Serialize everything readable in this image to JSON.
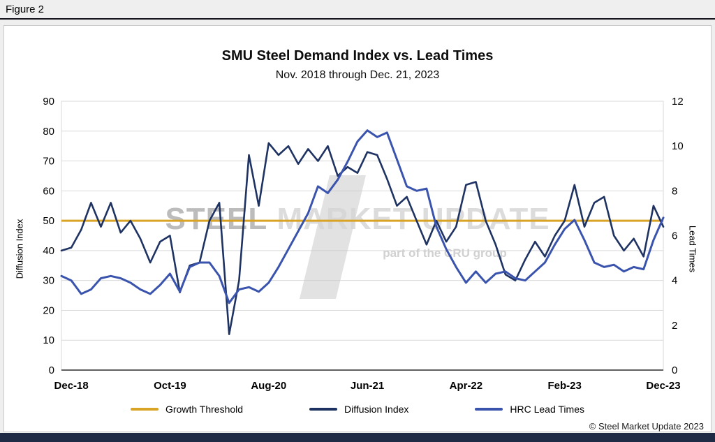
{
  "figure_label": "Figure 2",
  "title": "SMU Steel Demand Index vs. Lead Times",
  "subtitle": "Nov. 2018 through Dec. 21, 2023",
  "axes": {
    "left_title": "Diffusion Index",
    "right_title": "Lead Times"
  },
  "watermark": {
    "line1_a": "STEEL",
    "line1_b": "MARKET UPDATE",
    "line2": "part of the CRU group"
  },
  "copyright": "© Steel Market Update 2023",
  "colors": {
    "threshold": "#d9a426",
    "diffusion": "#1f3363",
    "lead_times": "#3a54ae",
    "grid": "#d9d9d9",
    "axis": "#000000",
    "bottom_bar": "#1f2a44"
  },
  "legend": [
    {
      "label": "Growth Threshold",
      "color_key": "threshold"
    },
    {
      "label": "Diffusion Index",
      "color_key": "diffusion"
    },
    {
      "label": "HRC Lead Times",
      "color_key": "lead_times"
    }
  ],
  "chart_data": {
    "type": "line",
    "title": "SMU Steel Demand Index vs. Lead Times",
    "subtitle": "Nov. 2018 through Dec. 21, 2023",
    "x_unit": "monthly points from Nov-2018 to Dec-2023 (values estimated from plot)",
    "x_tick_labels": [
      "Dec-18",
      "Oct-19",
      "Aug-20",
      "Jun-21",
      "Apr-22",
      "Feb-23",
      "Dec-23"
    ],
    "x_tick_month_indices": [
      1,
      11,
      21,
      31,
      41,
      51,
      61
    ],
    "y_left": {
      "min": 0,
      "max": 90,
      "step": 10,
      "title": "Diffusion Index"
    },
    "y_right": {
      "min": 0,
      "max": 12,
      "step": 2,
      "title": "Lead Times"
    },
    "grid": true,
    "legend_position": "bottom",
    "series": [
      {
        "name": "Growth Threshold",
        "axis": "left",
        "type": "constant",
        "value": 50,
        "color_key": "threshold"
      },
      {
        "name": "Diffusion Index",
        "axis": "left",
        "type": "line",
        "color_key": "diffusion",
        "values": [
          40,
          41,
          47,
          56,
          48,
          56,
          46,
          50,
          44,
          36,
          43,
          45,
          26,
          35,
          36,
          50,
          56,
          12,
          30,
          72,
          55,
          76,
          72,
          75,
          69,
          74,
          70,
          75,
          65,
          68,
          66,
          73,
          72,
          64,
          55,
          58,
          50,
          42,
          50,
          43,
          48,
          62,
          63,
          50,
          42,
          32,
          30,
          37,
          43,
          38,
          45,
          50,
          62,
          48,
          56,
          58,
          45,
          40,
          44,
          38,
          55,
          48
        ]
      },
      {
        "name": "HRC Lead Times",
        "axis": "right",
        "type": "line",
        "color_key": "lead_times",
        "values": [
          4.2,
          4.0,
          3.4,
          3.6,
          4.1,
          4.2,
          4.1,
          3.9,
          3.6,
          3.4,
          3.8,
          4.3,
          3.5,
          4.6,
          4.8,
          4.8,
          4.2,
          3.0,
          3.6,
          3.7,
          3.5,
          3.9,
          4.6,
          5.4,
          6.2,
          7.0,
          8.2,
          7.9,
          8.5,
          9.3,
          10.2,
          10.7,
          10.4,
          10.6,
          9.4,
          8.2,
          8.0,
          8.1,
          6.4,
          5.4,
          4.6,
          3.9,
          4.4,
          3.9,
          4.3,
          4.4,
          4.1,
          4.0,
          4.4,
          4.8,
          5.6,
          6.3,
          6.7,
          5.8,
          4.8,
          4.6,
          4.7,
          4.4,
          4.6,
          4.5,
          5.8,
          6.8
        ]
      }
    ]
  }
}
